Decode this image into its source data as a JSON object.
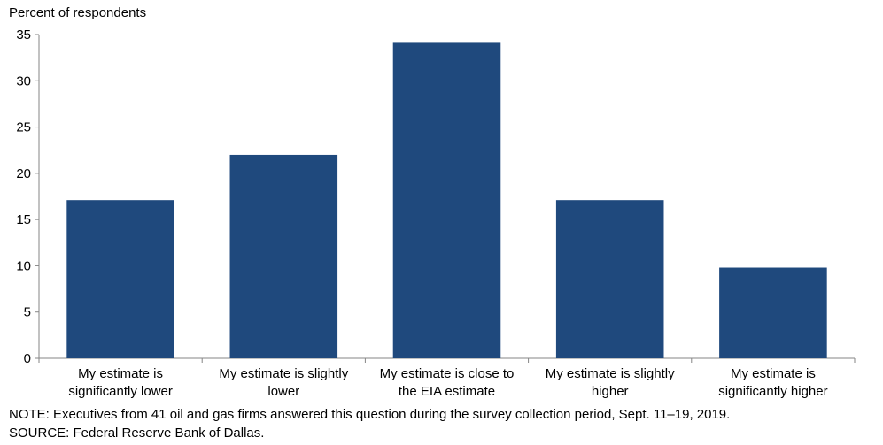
{
  "chart_data": {
    "type": "bar",
    "title": "",
    "ylabel": "Percent of respondents",
    "xlabel": "",
    "ylim": [
      0,
      35
    ],
    "yticks": [
      0,
      5,
      10,
      15,
      20,
      25,
      30,
      35
    ],
    "categories": [
      [
        "My estimate is",
        "significantly lower"
      ],
      [
        "My estimate is slightly",
        "lower"
      ],
      [
        "My estimate is close to",
        "the EIA estimate"
      ],
      [
        "My estimate is slightly",
        "higher"
      ],
      [
        "My estimate is",
        "significantly higher"
      ]
    ],
    "values": [
      17.1,
      22.0,
      34.1,
      17.1,
      9.8
    ],
    "bar_color": "#1f497d",
    "grid": false,
    "legend": "none"
  },
  "notes": {
    "note": "NOTE:  Executives  from  41  oil  and  gas  firms  answered  this  question  during  the  survey  collection  period,  Sept.  11–19,  2019.",
    "source": "SOURCE:  Federal  Reserve  Bank  of  Dallas."
  }
}
